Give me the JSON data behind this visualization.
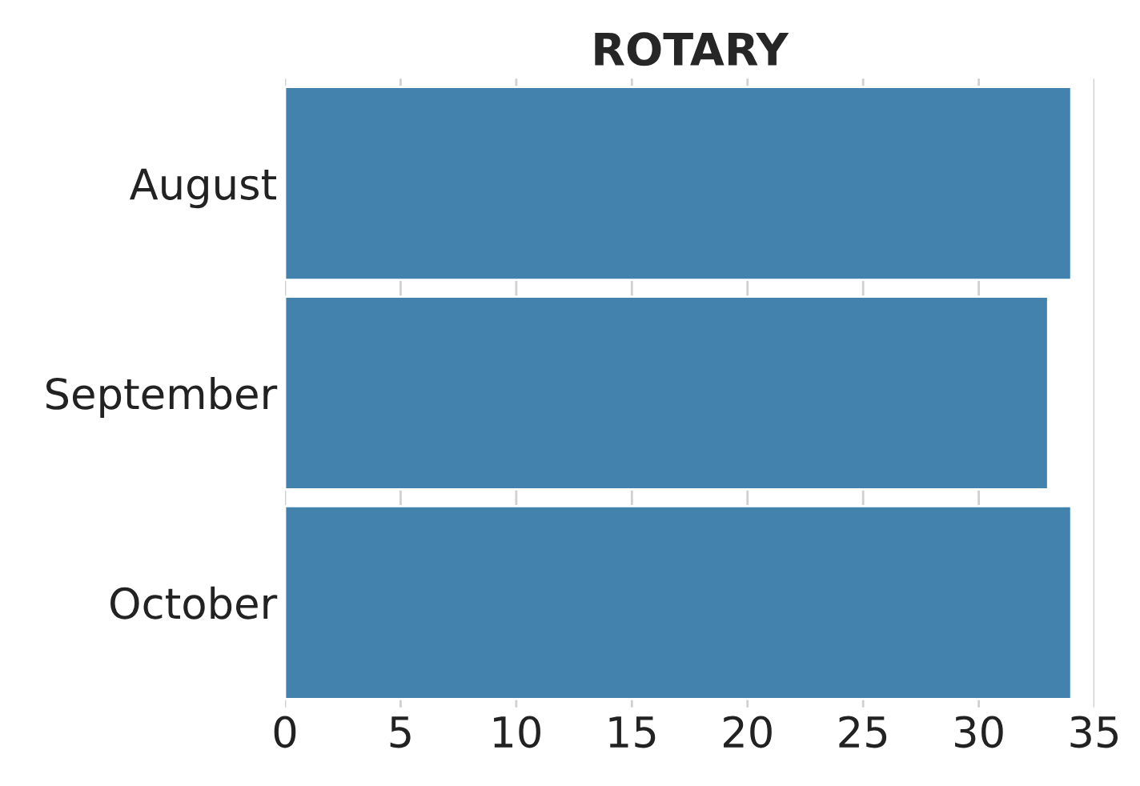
{
  "chart_data": {
    "type": "bar",
    "orientation": "horizontal",
    "title": "ROTARY",
    "categories": [
      "August",
      "September",
      "October"
    ],
    "values": [
      34,
      33,
      34
    ],
    "color": "#4382ad",
    "xlim": [
      0,
      35
    ],
    "xticks": [
      0,
      5,
      10,
      15,
      20,
      25,
      30,
      35
    ],
    "grid": "x"
  }
}
